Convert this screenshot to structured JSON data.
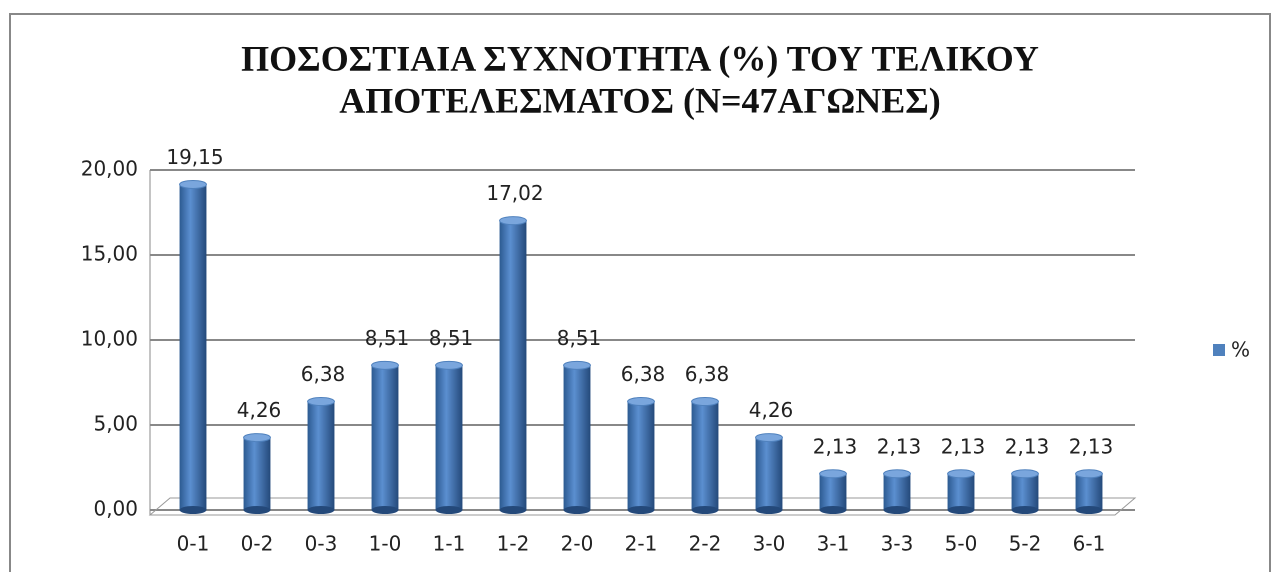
{
  "chart_data": {
    "type": "bar",
    "title": [
      "ΠΟΣΟΣΤΙΑΙΑ ΣΥΧΝΟΤΗΤΑ (%) ΤΟΥ ΤΕΛΙΚΟΥ",
      "ΑΠΟΤΕΛΕΣΜΑΤΟΣ (Ν=47ΑΓΩΝΕΣ)"
    ],
    "categories": [
      "0-1",
      "0-2",
      "0-3",
      "1-0",
      "1-1",
      "1-2",
      "2-0",
      "2-1",
      "2-2",
      "3-0",
      "3-1",
      "3-3",
      "5-0",
      "5-2",
      "6-1"
    ],
    "series": [
      {
        "name": "%",
        "color": "#4f81bd",
        "values": [
          19.15,
          4.26,
          6.38,
          8.51,
          8.51,
          17.02,
          8.51,
          6.38,
          6.38,
          4.26,
          2.13,
          2.13,
          2.13,
          2.13,
          2.13
        ],
        "value_labels": [
          "19,15",
          "4,26",
          "6,38",
          "8,51",
          "8,51",
          "17,02",
          "8,51",
          "6,38",
          "6,38",
          "4,26",
          "2,13",
          "2,13",
          "2,13",
          "2,13",
          "2,13"
        ]
      }
    ],
    "ylim": [
      0,
      20
    ],
    "yticks": [
      {
        "value": 0,
        "label": "0,00"
      },
      {
        "value": 5,
        "label": "5,00"
      },
      {
        "value": 10,
        "label": "10,00"
      },
      {
        "value": 15,
        "label": "15,00"
      },
      {
        "value": 20,
        "label": "20,00"
      }
    ],
    "grid": true,
    "legend": "right"
  }
}
